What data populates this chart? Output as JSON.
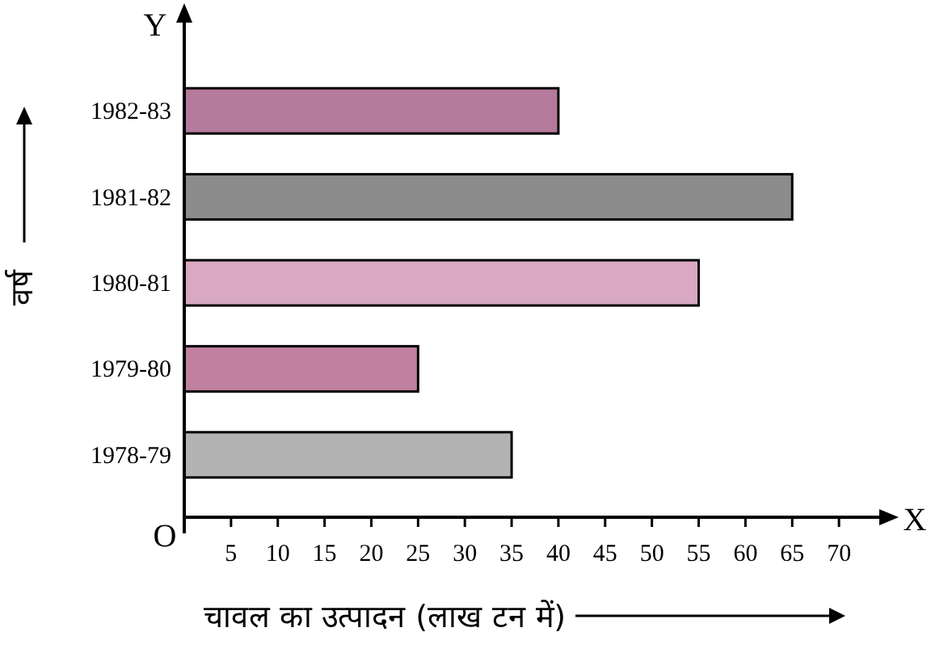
{
  "chart_data": {
    "type": "bar",
    "orientation": "horizontal",
    "categories": [
      "1982-83",
      "1981-82",
      "1980-81",
      "1979-80",
      "1978-79"
    ],
    "values": [
      40,
      65,
      55,
      25,
      35
    ],
    "colors": [
      "#b57a9c",
      "#8c8c8c",
      "#d8a8c4",
      "#c0809f",
      "#b3b3b3"
    ],
    "xlim": [
      0,
      75
    ],
    "xticks": [
      5,
      10,
      15,
      20,
      25,
      30,
      35,
      40,
      45,
      50,
      55,
      60,
      65,
      70
    ],
    "xlabel": "चावल का उत्पादन (लाख टन में)",
    "ylabel": "वर्ष",
    "annotations": [
      "O",
      "X",
      "Y"
    ]
  }
}
